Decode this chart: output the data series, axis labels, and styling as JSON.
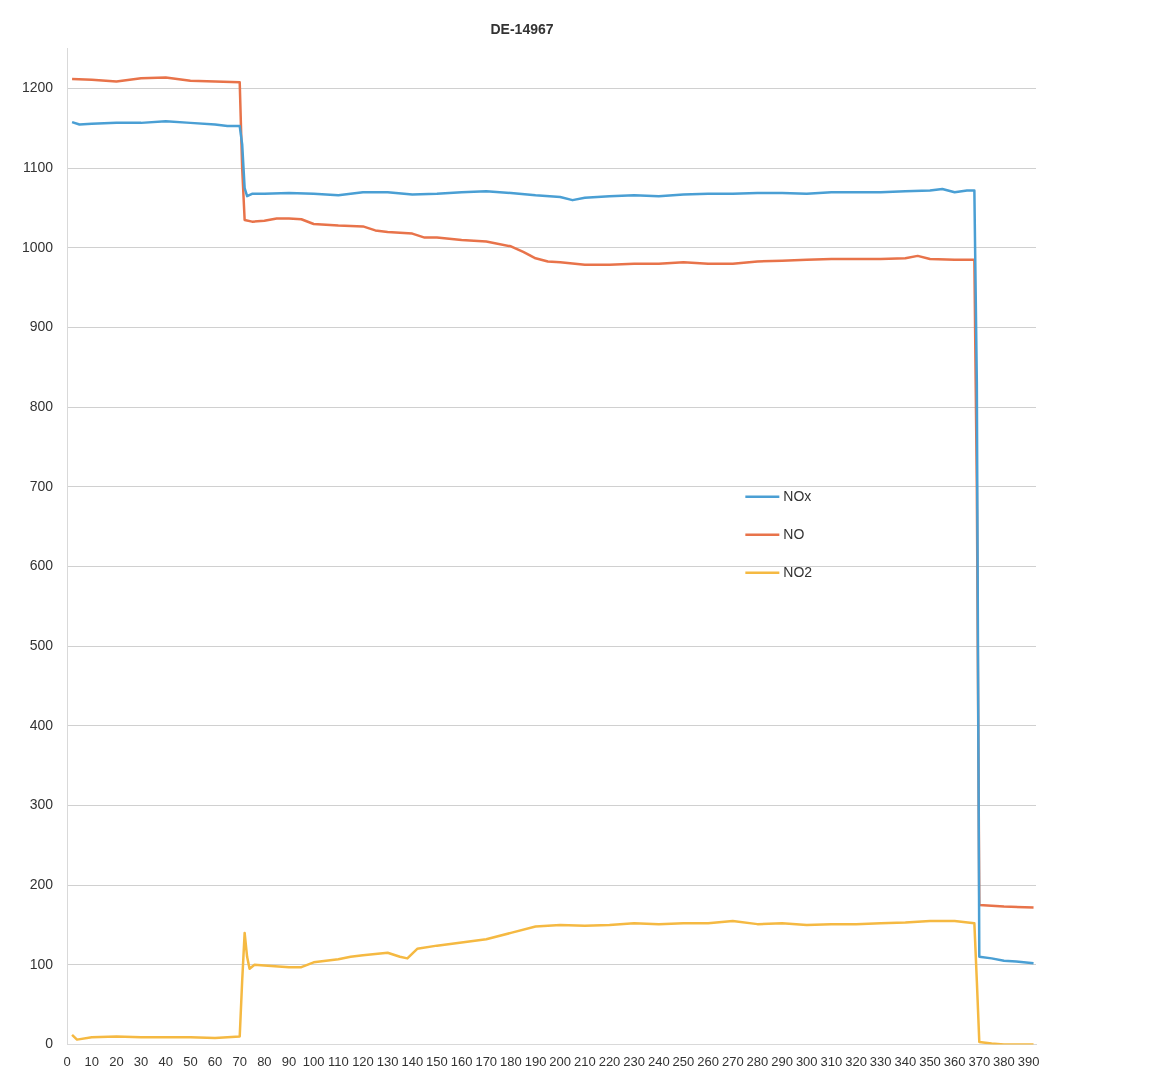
{
  "chart_data": {
    "type": "line",
    "title": "DE-14967",
    "series": [
      {
        "name": "NOx",
        "color": "#4a9fd4",
        "x": [
          2,
          5,
          10,
          20,
          30,
          40,
          50,
          60,
          65,
          70,
          71,
          72,
          73,
          75,
          80,
          90,
          100,
          110,
          120,
          130,
          140,
          150,
          160,
          170,
          180,
          190,
          200,
          205,
          210,
          220,
          230,
          240,
          250,
          260,
          270,
          280,
          290,
          300,
          310,
          320,
          330,
          340,
          350,
          355,
          360,
          365,
          368,
          369,
          370,
          375,
          380,
          385,
          392
        ],
        "values": [
          1158,
          1155,
          1156,
          1157,
          1157,
          1159,
          1157,
          1155,
          1153,
          1153,
          1130,
          1075,
          1065,
          1068,
          1068,
          1069,
          1068,
          1066,
          1070,
          1070,
          1067,
          1068,
          1070,
          1071,
          1069,
          1066,
          1064,
          1060,
          1063,
          1065,
          1066,
          1065,
          1067,
          1068,
          1068,
          1069,
          1069,
          1068,
          1070,
          1070,
          1070,
          1071,
          1072,
          1074,
          1070,
          1072,
          1072,
          830,
          110,
          108,
          105,
          104,
          102
        ]
      },
      {
        "name": "NO",
        "color": "#e8734a",
        "x": [
          2,
          10,
          20,
          30,
          40,
          50,
          60,
          70,
          71,
          72,
          75,
          80,
          85,
          90,
          95,
          100,
          110,
          120,
          125,
          130,
          140,
          145,
          150,
          160,
          170,
          180,
          185,
          190,
          195,
          200,
          210,
          220,
          230,
          240,
          250,
          260,
          270,
          280,
          290,
          300,
          310,
          320,
          330,
          340,
          345,
          350,
          360,
          368,
          369,
          370,
          375,
          380,
          392
        ],
        "values": [
          1212,
          1211,
          1209,
          1213,
          1214,
          1210,
          1209,
          1208,
          1100,
          1035,
          1033,
          1034,
          1037,
          1037,
          1036,
          1030,
          1028,
          1027,
          1022,
          1020,
          1018,
          1013,
          1013,
          1010,
          1008,
          1002,
          995,
          987,
          983,
          982,
          979,
          979,
          980,
          980,
          982,
          980,
          980,
          983,
          984,
          985,
          986,
          986,
          986,
          987,
          990,
          986,
          985,
          985,
          700,
          175,
          174,
          173,
          172
        ]
      },
      {
        "name": "NO2",
        "color": "#f5b942",
        "x": [
          2,
          4,
          10,
          20,
          30,
          40,
          50,
          60,
          65,
          70,
          71,
          72,
          73,
          74,
          76,
          80,
          90,
          95,
          100,
          110,
          115,
          120,
          130,
          135,
          138,
          142,
          150,
          160,
          170,
          180,
          190,
          200,
          210,
          220,
          230,
          240,
          250,
          260,
          270,
          280,
          290,
          300,
          310,
          320,
          330,
          340,
          350,
          360,
          368,
          369,
          370,
          375,
          380,
          392
        ],
        "values": [
          12,
          6,
          9,
          10,
          9,
          9,
          9,
          8,
          9,
          10,
          80,
          140,
          110,
          95,
          100,
          99,
          97,
          97,
          103,
          107,
          110,
          112,
          115,
          110,
          108,
          120,
          124,
          128,
          132,
          140,
          148,
          150,
          149,
          150,
          152,
          151,
          152,
          152,
          155,
          151,
          152,
          150,
          151,
          151,
          152,
          153,
          155,
          155,
          152,
          80,
          3,
          1,
          0,
          0
        ]
      }
    ],
    "xlim": [
      0,
      393
    ],
    "xticks": [
      0,
      10,
      20,
      30,
      40,
      50,
      60,
      70,
      80,
      90,
      100,
      110,
      120,
      130,
      140,
      150,
      160,
      170,
      180,
      190,
      200,
      210,
      220,
      230,
      240,
      250,
      260,
      270,
      280,
      290,
      300,
      310,
      320,
      330,
      340,
      350,
      360,
      370,
      380,
      390
    ],
    "ylim": [
      0,
      1250
    ],
    "yticks": [
      0,
      100,
      200,
      300,
      400,
      500,
      600,
      700,
      800,
      900,
      1000,
      1100,
      1200
    ],
    "grid": "y",
    "legend": "right",
    "marker": "none",
    "line_style": "solid"
  }
}
